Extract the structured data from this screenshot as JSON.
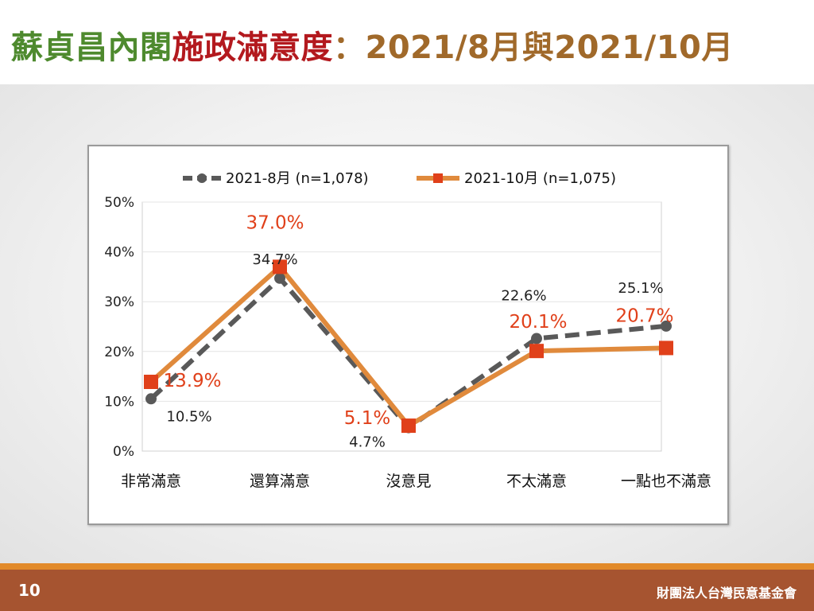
{
  "title": {
    "part1": "蘇貞昌內閣",
    "part2": "施政滿意度",
    "part3": "：",
    "part4": "2021/8月",
    "part5": " 與 ",
    "part6": "2021/10月"
  },
  "colors": {
    "green": "#4e8a2e",
    "red": "#b3191e",
    "brown": "#a0692a",
    "series_aug": "#595959",
    "series_oct_line": "#e08a3c",
    "series_oct_marker": "#e0401a",
    "label_oct": "#e0401a",
    "footer": "#a65430",
    "stripe": "#e28a2a"
  },
  "footer": {
    "page_number": "10",
    "organization": "財團法人台灣民意基金會"
  },
  "chart_data": {
    "type": "line",
    "categories": [
      "非常滿意",
      "還算滿意",
      "沒意見",
      "不太滿意",
      "一點也不滿意"
    ],
    "ylim": [
      0,
      50
    ],
    "yticks": [
      0,
      10,
      20,
      30,
      40,
      50
    ],
    "ytick_labels": [
      "0%",
      "10%",
      "20%",
      "30%",
      "40%",
      "50%"
    ],
    "grid": true,
    "legend_position": "top",
    "series": [
      {
        "name": "2021-8月  (n=1,078)",
        "values": [
          10.5,
          34.7,
          4.7,
          22.6,
          25.1
        ],
        "labels": [
          "10.5%",
          "34.7%",
          "4.7%",
          "22.6%",
          "25.1%"
        ],
        "style": "dashed",
        "marker": "circle"
      },
      {
        "name": "2021-10月  (n=1,075)",
        "values": [
          13.9,
          37.0,
          5.1,
          20.1,
          20.7
        ],
        "labels": [
          "13.9%",
          "37.0%",
          "5.1%",
          "20.1%",
          "20.7%"
        ],
        "style": "solid",
        "marker": "square"
      }
    ]
  }
}
